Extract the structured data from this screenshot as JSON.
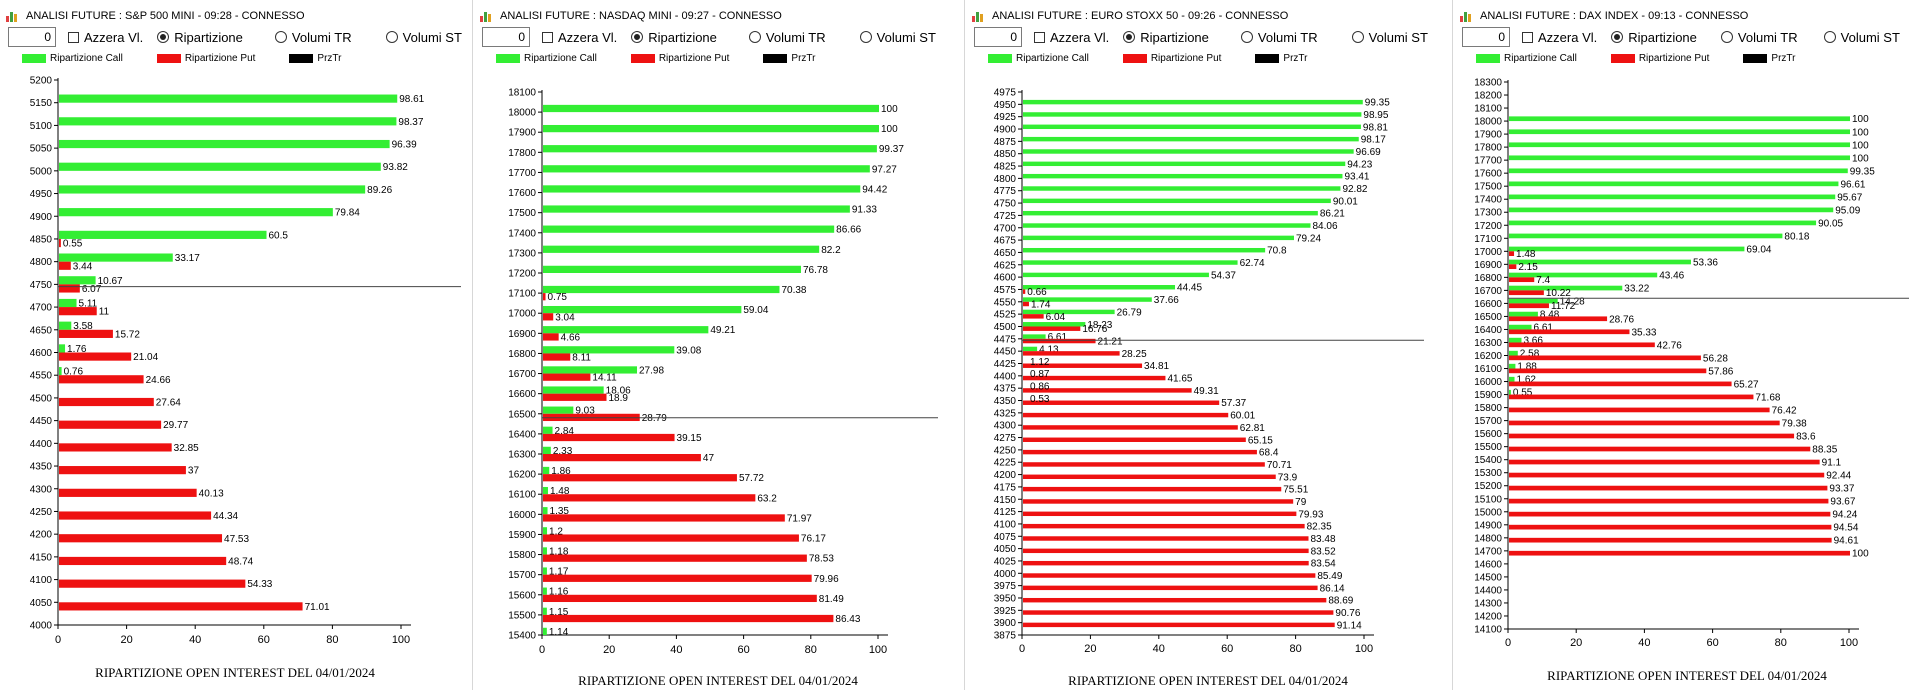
{
  "common": {
    "azzera_label": "Azzera Vl.",
    "ripartizione_label": "Ripartizione",
    "volumi_tr_label": "Volumi TR",
    "volumi_st_label": "Volumi ST",
    "input_value": "0",
    "legend_call": "Ripartizione Call",
    "legend_put": "Ripartizione Put",
    "legend_przt": "PrzTr",
    "colors": {
      "call": "#33ee33",
      "put": "#ee1111",
      "przt": "#000000",
      "line": "#444444"
    }
  },
  "chart_data": [
    {
      "type": "bar",
      "title": "ANALISI FUTURE : S&P 500 MINI - 09:28 - CONNESSO",
      "caption": "RIPARTIZIONE OPEN INTEREST DEL 04/01/2024",
      "x_ticks": [
        "0",
        "20",
        "40",
        "60",
        "80",
        "100"
      ],
      "xlim": [
        0,
        100
      ],
      "y_ticks": [
        "5200",
        "5150",
        "5100",
        "5050",
        "5000",
        "4950",
        "4900",
        "4850",
        "4800",
        "4750",
        "4700",
        "4650",
        "4600",
        "4550",
        "4500",
        "4450",
        "4400",
        "4350",
        "4300",
        "4250",
        "4200",
        "4150",
        "4100",
        "4050",
        "4000"
      ],
      "categories": [
        "5150",
        "5100",
        "5050",
        "5000",
        "4950",
        "4900",
        "4850",
        "4800",
        "4750",
        "4700",
        "4650",
        "4600",
        "4550",
        "4500",
        "4450",
        "4400",
        "4350",
        "4300",
        "4250",
        "4200",
        "4150",
        "4100",
        "4050"
      ],
      "call": [
        "98.61",
        "98.37",
        "96.39",
        "93.82",
        "89.26",
        "79.84",
        "60.5",
        "33.17",
        "10.67",
        "5.11",
        "3.58",
        "1.76",
        "0.76",
        "",
        "",
        "",
        "",
        "",
        "",
        "",
        "",
        "",
        ""
      ],
      "put": [
        "",
        "",
        "",
        "",
        "",
        "",
        "0.55",
        "3.44",
        "6.07",
        "11",
        "15.72",
        "21.04",
        "24.66",
        "27.64",
        "29.77",
        "32.85",
        "37",
        "40.13",
        "44.34",
        "47.53",
        "48.74",
        "54.33",
        "71.01"
      ],
      "przt_level": 4745
    },
    {
      "type": "bar",
      "title": "ANALISI FUTURE : NASDAQ MINI - 09:27 - CONNESSO",
      "caption": "RIPARTIZIONE OPEN INTEREST DEL 04/01/2024",
      "x_ticks": [
        "0",
        "20",
        "40",
        "60",
        "80",
        "100"
      ],
      "xlim": [
        0,
        100
      ],
      "y_ticks": [
        "18100",
        "18000",
        "17900",
        "17800",
        "17700",
        "17600",
        "17500",
        "17400",
        "17300",
        "17200",
        "17100",
        "17000",
        "16900",
        "16800",
        "16700",
        "16600",
        "16500",
        "16400",
        "16300",
        "16200",
        "16100",
        "16000",
        "15900",
        "15800",
        "15700",
        "15600",
        "15500",
        "15400"
      ],
      "categories": [
        "18000",
        "17900",
        "17800",
        "17700",
        "17600",
        "17500",
        "17400",
        "17300",
        "17200",
        "17100",
        "17000",
        "16900",
        "16800",
        "16700",
        "16600",
        "16500",
        "16400",
        "16300",
        "16200",
        "16100",
        "16000",
        "15900",
        "15800",
        "15700",
        "15600",
        "15500",
        "15400"
      ],
      "call": [
        "100",
        "100",
        "99.37",
        "97.27",
        "94.42",
        "91.33",
        "86.66",
        "82.2",
        "76.78",
        "70.38",
        "59.04",
        "49.21",
        "39.08",
        "27.98",
        "18.06",
        "9.03",
        "2.84",
        "2.33",
        "1.86",
        "1.48",
        "1.35",
        "1.2",
        "1.18",
        "1.17",
        "1.16",
        "1.15",
        "1.14"
      ],
      "put": [
        "",
        "",
        "",
        "",
        "",
        "",
        "",
        "",
        "",
        "0.75",
        "3.04",
        "4.66",
        "8.11",
        "14.11",
        "18.9",
        "28.79",
        "39.15",
        "47",
        "57.72",
        "63.2",
        "71.97",
        "76.17",
        "78.53",
        "79.96",
        "81.49",
        "86.43",
        ""
      ],
      "przt_level": 16480
    },
    {
      "type": "bar",
      "title": "ANALISI FUTURE : EURO STOXX 50 - 09:26 - CONNESSO",
      "caption": "RIPARTIZIONE OPEN INTEREST DEL 04/01/2024",
      "x_ticks": [
        "0",
        "20",
        "40",
        "60",
        "80",
        "100"
      ],
      "xlim": [
        0,
        100
      ],
      "y_ticks": [
        "4975",
        "4950",
        "4925",
        "4900",
        "4875",
        "4850",
        "4825",
        "4800",
        "4775",
        "4750",
        "4725",
        "4700",
        "4675",
        "4650",
        "4625",
        "4600",
        "4575",
        "4550",
        "4525",
        "4500",
        "4475",
        "4450",
        "4425",
        "4400",
        "4375",
        "4350",
        "4325",
        "4300",
        "4275",
        "4250",
        "4225",
        "4200",
        "4175",
        "4150",
        "4125",
        "4100",
        "4075",
        "4050",
        "4025",
        "4000",
        "3975",
        "3950",
        "3925",
        "3900",
        "3875"
      ],
      "categories": [
        "4950",
        "4925",
        "4900",
        "4875",
        "4850",
        "4825",
        "4800",
        "4775",
        "4750",
        "4725",
        "4700",
        "4675",
        "4650",
        "4625",
        "4600",
        "4575",
        "4550",
        "4525",
        "4500",
        "4475",
        "4450",
        "4425",
        "4400",
        "4375",
        "4350",
        "4325",
        "4300",
        "4275",
        "4250",
        "4225",
        "4200",
        "4175",
        "4150",
        "4125",
        "4100",
        "4075",
        "4050",
        "4025",
        "4000",
        "3975",
        "3950",
        "3925",
        "3900"
      ],
      "call": [
        "99.35",
        "98.95",
        "98.81",
        "98.17",
        "96.69",
        "94.23",
        "93.41",
        "92.82",
        "90.01",
        "86.21",
        "84.06",
        "79.24",
        "70.8",
        "62.74",
        "54.37",
        "44.45",
        "37.66",
        "26.79",
        "18.23",
        "6.61",
        "4.13",
        "",
        "",
        "",
        "",
        "",
        "",
        "",
        "",
        "",
        "",
        "",
        "",
        "",
        "",
        "",
        "",
        "",
        "",
        "",
        "",
        "",
        ""
      ],
      "put": [
        "",
        "",
        "",
        "",
        "",
        "",
        "",
        "",
        "",
        "",
        "",
        "",
        "",
        "",
        "",
        "0.66",
        "1.74",
        "6.04",
        "16.76",
        "21.21",
        "28.25",
        "34.81",
        "41.65",
        "49.31",
        "57.37",
        "60.01",
        "62.81",
        "65.15",
        "68.4",
        "70.71",
        "73.9",
        "75.51",
        "79",
        "79.93",
        "82.35",
        "83.48",
        "83.52",
        "83.54",
        "85.49",
        "86.14",
        "88.69",
        "90.76",
        "91.14"
      ],
      "call_small_labels": [
        "",
        "",
        "",
        "",
        "",
        "",
        "",
        "",
        "",
        "",
        "",
        "",
        "",
        "",
        "",
        "",
        "",
        "",
        "",
        "",
        "",
        "1.12",
        "0.87",
        "0.86",
        "0.53",
        "",
        "",
        "",
        "",
        "",
        "",
        "",
        "",
        "",
        "",
        "",
        "",
        "",
        "",
        "",
        "",
        "",
        ""
      ],
      "przt_level": 4472
    },
    {
      "type": "bar",
      "title": "ANALISI FUTURE : DAX INDEX - 09:13 - CONNESSO",
      "caption": "RIPARTIZIONE OPEN INTEREST DEL 04/01/2024",
      "x_ticks": [
        "0",
        "20",
        "40",
        "60",
        "80",
        "100"
      ],
      "xlim": [
        0,
        100
      ],
      "y_ticks": [
        "18300",
        "18200",
        "18100",
        "18000",
        "17900",
        "17800",
        "17700",
        "17600",
        "17500",
        "17400",
        "17300",
        "17200",
        "17100",
        "17000",
        "16900",
        "16800",
        "16700",
        "16600",
        "16500",
        "16400",
        "16300",
        "16200",
        "16100",
        "16000",
        "15900",
        "15800",
        "15700",
        "15600",
        "15500",
        "15400",
        "15300",
        "15200",
        "15100",
        "15000",
        "14900",
        "14800",
        "14700",
        "14600",
        "14500",
        "14400",
        "14300",
        "14200",
        "14100"
      ],
      "categories": [
        "18000",
        "17900",
        "17800",
        "17700",
        "17600",
        "17500",
        "17400",
        "17300",
        "17200",
        "17100",
        "17000",
        "16900",
        "16800",
        "16700",
        "16600",
        "16500",
        "16400",
        "16300",
        "16200",
        "16100",
        "16000",
        "15900",
        "15800",
        "15700",
        "15600",
        "15500",
        "15400",
        "15300",
        "15200",
        "15100",
        "15000",
        "14900",
        "14800",
        "14700"
      ],
      "call": [
        "100",
        "100",
        "100",
        "100",
        "99.35",
        "96.61",
        "95.67",
        "95.09",
        "90.05",
        "80.18",
        "69.04",
        "53.36",
        "43.46",
        "33.22",
        "14.28",
        "8.48",
        "6.61",
        "3.66",
        "2.58",
        "1.88",
        "1.62",
        "0.55",
        "",
        "",
        "",
        "",
        "",
        "",
        "",
        "",
        "",
        "",
        "",
        ""
      ],
      "put": [
        "",
        "",
        "",
        "",
        "",
        "",
        "",
        "",
        "",
        "",
        "1.48",
        "2.15",
        "7.4",
        "10.22",
        "11.72",
        "28.76",
        "35.33",
        "42.76",
        "56.28",
        "57.86",
        "65.27",
        "71.68",
        "76.42",
        "79.38",
        "83.6",
        "88.35",
        "91.1",
        "92.44",
        "93.37",
        "93.67",
        "94.24",
        "94.54",
        "94.61",
        "100"
      ],
      "przt_level": 16640
    }
  ]
}
